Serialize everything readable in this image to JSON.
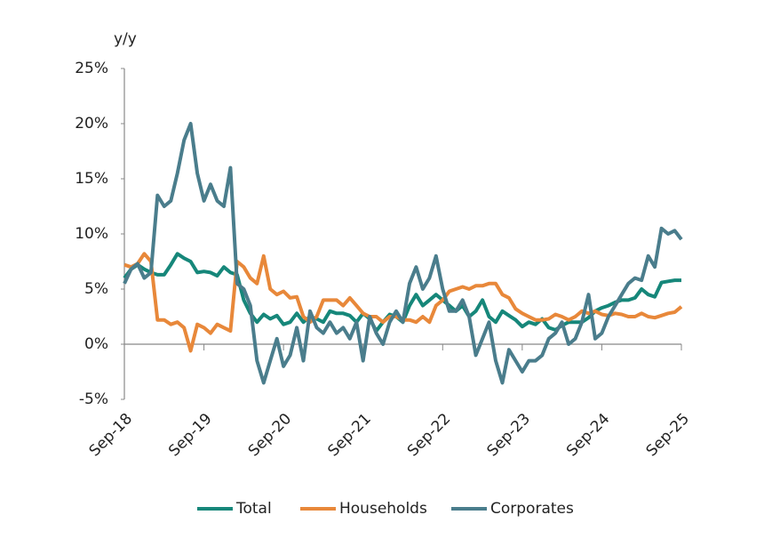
{
  "chart_data": {
    "type": "line",
    "y_axis_label": "y/y",
    "categories": [
      "Sep-18",
      null,
      null,
      null,
      null,
      null,
      null,
      null,
      null,
      null,
      null,
      null,
      "Sep-19",
      null,
      null,
      null,
      null,
      null,
      null,
      null,
      null,
      null,
      null,
      null,
      "Sep-20",
      null,
      null,
      null,
      null,
      null,
      null,
      null,
      null,
      null,
      null,
      null,
      "Sep-21",
      null,
      null,
      null,
      null,
      null,
      null,
      null,
      null,
      null,
      null,
      null,
      "Sep-22",
      null,
      null,
      null,
      null,
      null,
      null,
      null,
      null,
      null,
      null,
      null,
      "Sep-23",
      null,
      null,
      null,
      null,
      null,
      null,
      null,
      null,
      null,
      null,
      null,
      "Sep-24",
      null,
      null,
      null,
      null,
      null,
      null,
      null,
      null,
      null,
      null,
      null,
      "Sep-25"
    ],
    "series": [
      {
        "name": "Total",
        "color": "#16877a",
        "values": [
          6.0,
          6.8,
          7.2,
          6.8,
          6.5,
          6.3,
          6.3,
          7.2,
          8.2,
          7.8,
          7.5,
          6.5,
          6.6,
          6.5,
          6.2,
          7.0,
          6.5,
          6.3,
          4.0,
          2.8,
          2.0,
          2.7,
          2.3,
          2.6,
          1.8,
          2.0,
          2.8,
          2.0,
          2.5,
          2.3,
          2.0,
          3.0,
          2.8,
          2.8,
          2.6,
          2.0,
          2.8,
          2.3,
          1.2,
          2.0,
          2.7,
          2.5,
          2.0,
          3.5,
          4.5,
          3.5,
          4.0,
          4.5,
          4.0,
          3.5,
          3.0,
          3.5,
          2.5,
          3.0,
          4.0,
          2.5,
          2.0,
          3.0,
          2.6,
          2.2,
          1.6,
          2.0,
          1.8,
          2.3,
          1.5,
          1.3,
          1.7,
          2.0,
          2.0,
          2.0,
          2.4,
          3.0,
          3.3,
          3.5,
          3.8,
          4.0,
          4.0,
          4.2,
          5.0,
          4.5,
          4.3,
          5.6,
          5.7,
          5.8,
          5.8
        ]
      },
      {
        "name": "Households",
        "color": "#e8883a",
        "values": [
          7.2,
          7.0,
          7.3,
          8.2,
          7.5,
          2.2,
          2.2,
          1.8,
          2.0,
          1.5,
          -0.6,
          1.8,
          1.5,
          1.0,
          1.8,
          1.5,
          1.2,
          7.5,
          7.0,
          6.0,
          5.5,
          8.0,
          5.0,
          4.5,
          4.8,
          4.2,
          4.3,
          2.5,
          2.0,
          2.5,
          4.0,
          4.0,
          4.0,
          3.5,
          4.2,
          3.5,
          2.8,
          2.5,
          2.5,
          2.0,
          2.5,
          2.5,
          2.2,
          2.2,
          2.0,
          2.5,
          2.0,
          3.5,
          4.0,
          4.8,
          5.0,
          5.2,
          5.0,
          5.3,
          5.3,
          5.5,
          5.5,
          4.5,
          4.2,
          3.2,
          2.8,
          2.5,
          2.2,
          2.2,
          2.3,
          2.7,
          2.5,
          2.2,
          2.5,
          3.0,
          2.8,
          3.0,
          2.7,
          2.6,
          2.8,
          2.7,
          2.5,
          2.5,
          2.8,
          2.5,
          2.4,
          2.6,
          2.8,
          2.9,
          3.4
        ]
      },
      {
        "name": "Corporates",
        "color": "#4a7d8c",
        "values": [
          5.5,
          6.8,
          7.3,
          6.0,
          6.5,
          13.5,
          12.5,
          13.0,
          15.5,
          18.5,
          20.0,
          15.5,
          13.0,
          14.5,
          13.0,
          12.5,
          16.0,
          5.5,
          5.0,
          3.5,
          -1.5,
          -3.5,
          -1.5,
          0.5,
          -2.0,
          -1.0,
          1.5,
          -1.5,
          3.0,
          1.5,
          1.0,
          2.0,
          1.0,
          1.5,
          0.5,
          2.0,
          -1.5,
          2.5,
          1.0,
          0.0,
          2.0,
          3.0,
          2.0,
          5.5,
          7.0,
          5.0,
          6.0,
          8.0,
          5.0,
          3.0,
          3.0,
          4.0,
          2.5,
          -1.0,
          0.5,
          2.0,
          -1.5,
          -3.5,
          -0.5,
          -1.5,
          -2.5,
          -1.5,
          -1.5,
          -1.0,
          0.5,
          1.0,
          2.0,
          0.0,
          0.5,
          2.0,
          4.5,
          0.5,
          1.0,
          2.5,
          3.5,
          4.5,
          5.5,
          6.0,
          5.8,
          8.0,
          7.0,
          10.5,
          10.0,
          10.3,
          9.5
        ]
      }
    ],
    "ylim": [
      -5,
      25
    ],
    "yticks": [
      {
        "value": -5,
        "label": "-5%"
      },
      {
        "value": 0,
        "label": "0%"
      },
      {
        "value": 5,
        "label": "5%"
      },
      {
        "value": 10,
        "label": "10%"
      },
      {
        "value": 15,
        "label": "15%"
      },
      {
        "value": 20,
        "label": "20%"
      },
      {
        "value": 25,
        "label": "25%"
      }
    ],
    "grid": false
  }
}
